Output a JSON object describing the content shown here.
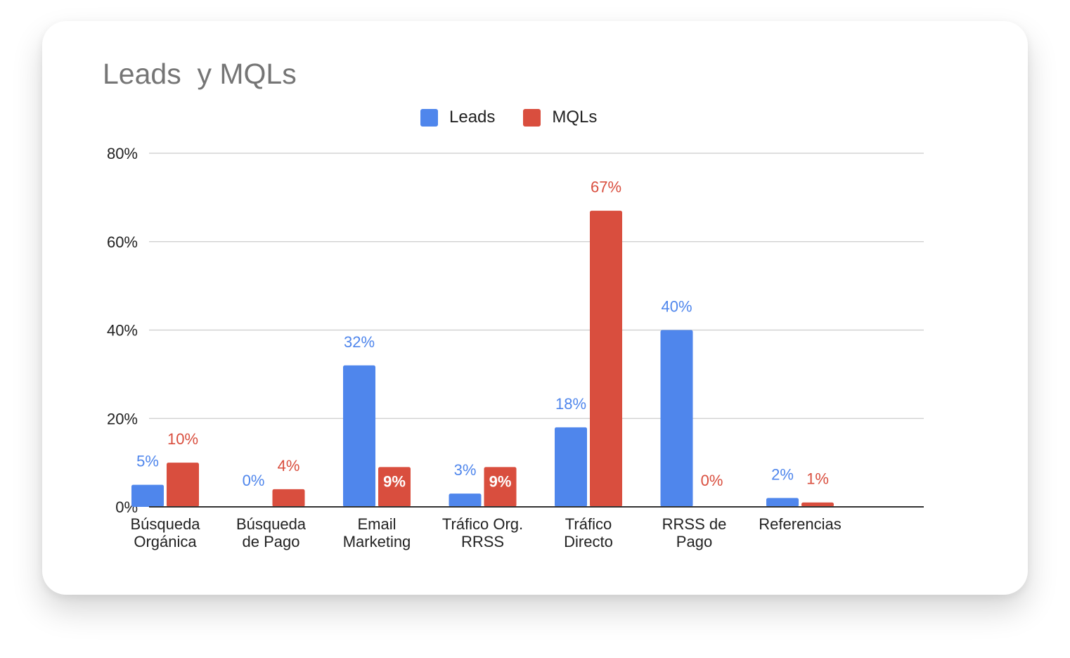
{
  "chart_data": {
    "type": "bar",
    "title": "Leads  y MQLs",
    "xlabel": "",
    "ylabel": "",
    "ylim": [
      0,
      80
    ],
    "yticks": [
      "0%",
      "20%",
      "40%",
      "60%",
      "80%"
    ],
    "ytick_values": [
      0,
      20,
      40,
      60,
      80
    ],
    "grid": true,
    "legend_position": "top-center",
    "categories": [
      [
        "Búsqueda",
        "Orgánica"
      ],
      [
        "Búsqueda",
        "de Pago"
      ],
      [
        "Email",
        "Marketing"
      ],
      [
        "Tráfico Org.",
        "RRSS"
      ],
      [
        "Tráfico",
        "Directo"
      ],
      [
        "RRSS de",
        "Pago"
      ],
      [
        "Referencias"
      ]
    ],
    "series": [
      {
        "name": "Leads",
        "color": "#4f86ec",
        "values": [
          5,
          0,
          32,
          3,
          18,
          40,
          2
        ],
        "labels": [
          "5%",
          "0%",
          "32%",
          "3%",
          "18%",
          "40%",
          "2%"
        ]
      },
      {
        "name": "MQLs",
        "color": "#d94e3e",
        "values": [
          10,
          4,
          9,
          9,
          67,
          0,
          1
        ],
        "labels": [
          "10%",
          "4%",
          "9%",
          "9%",
          "67%",
          "0%",
          "1%"
        ]
      }
    ]
  }
}
